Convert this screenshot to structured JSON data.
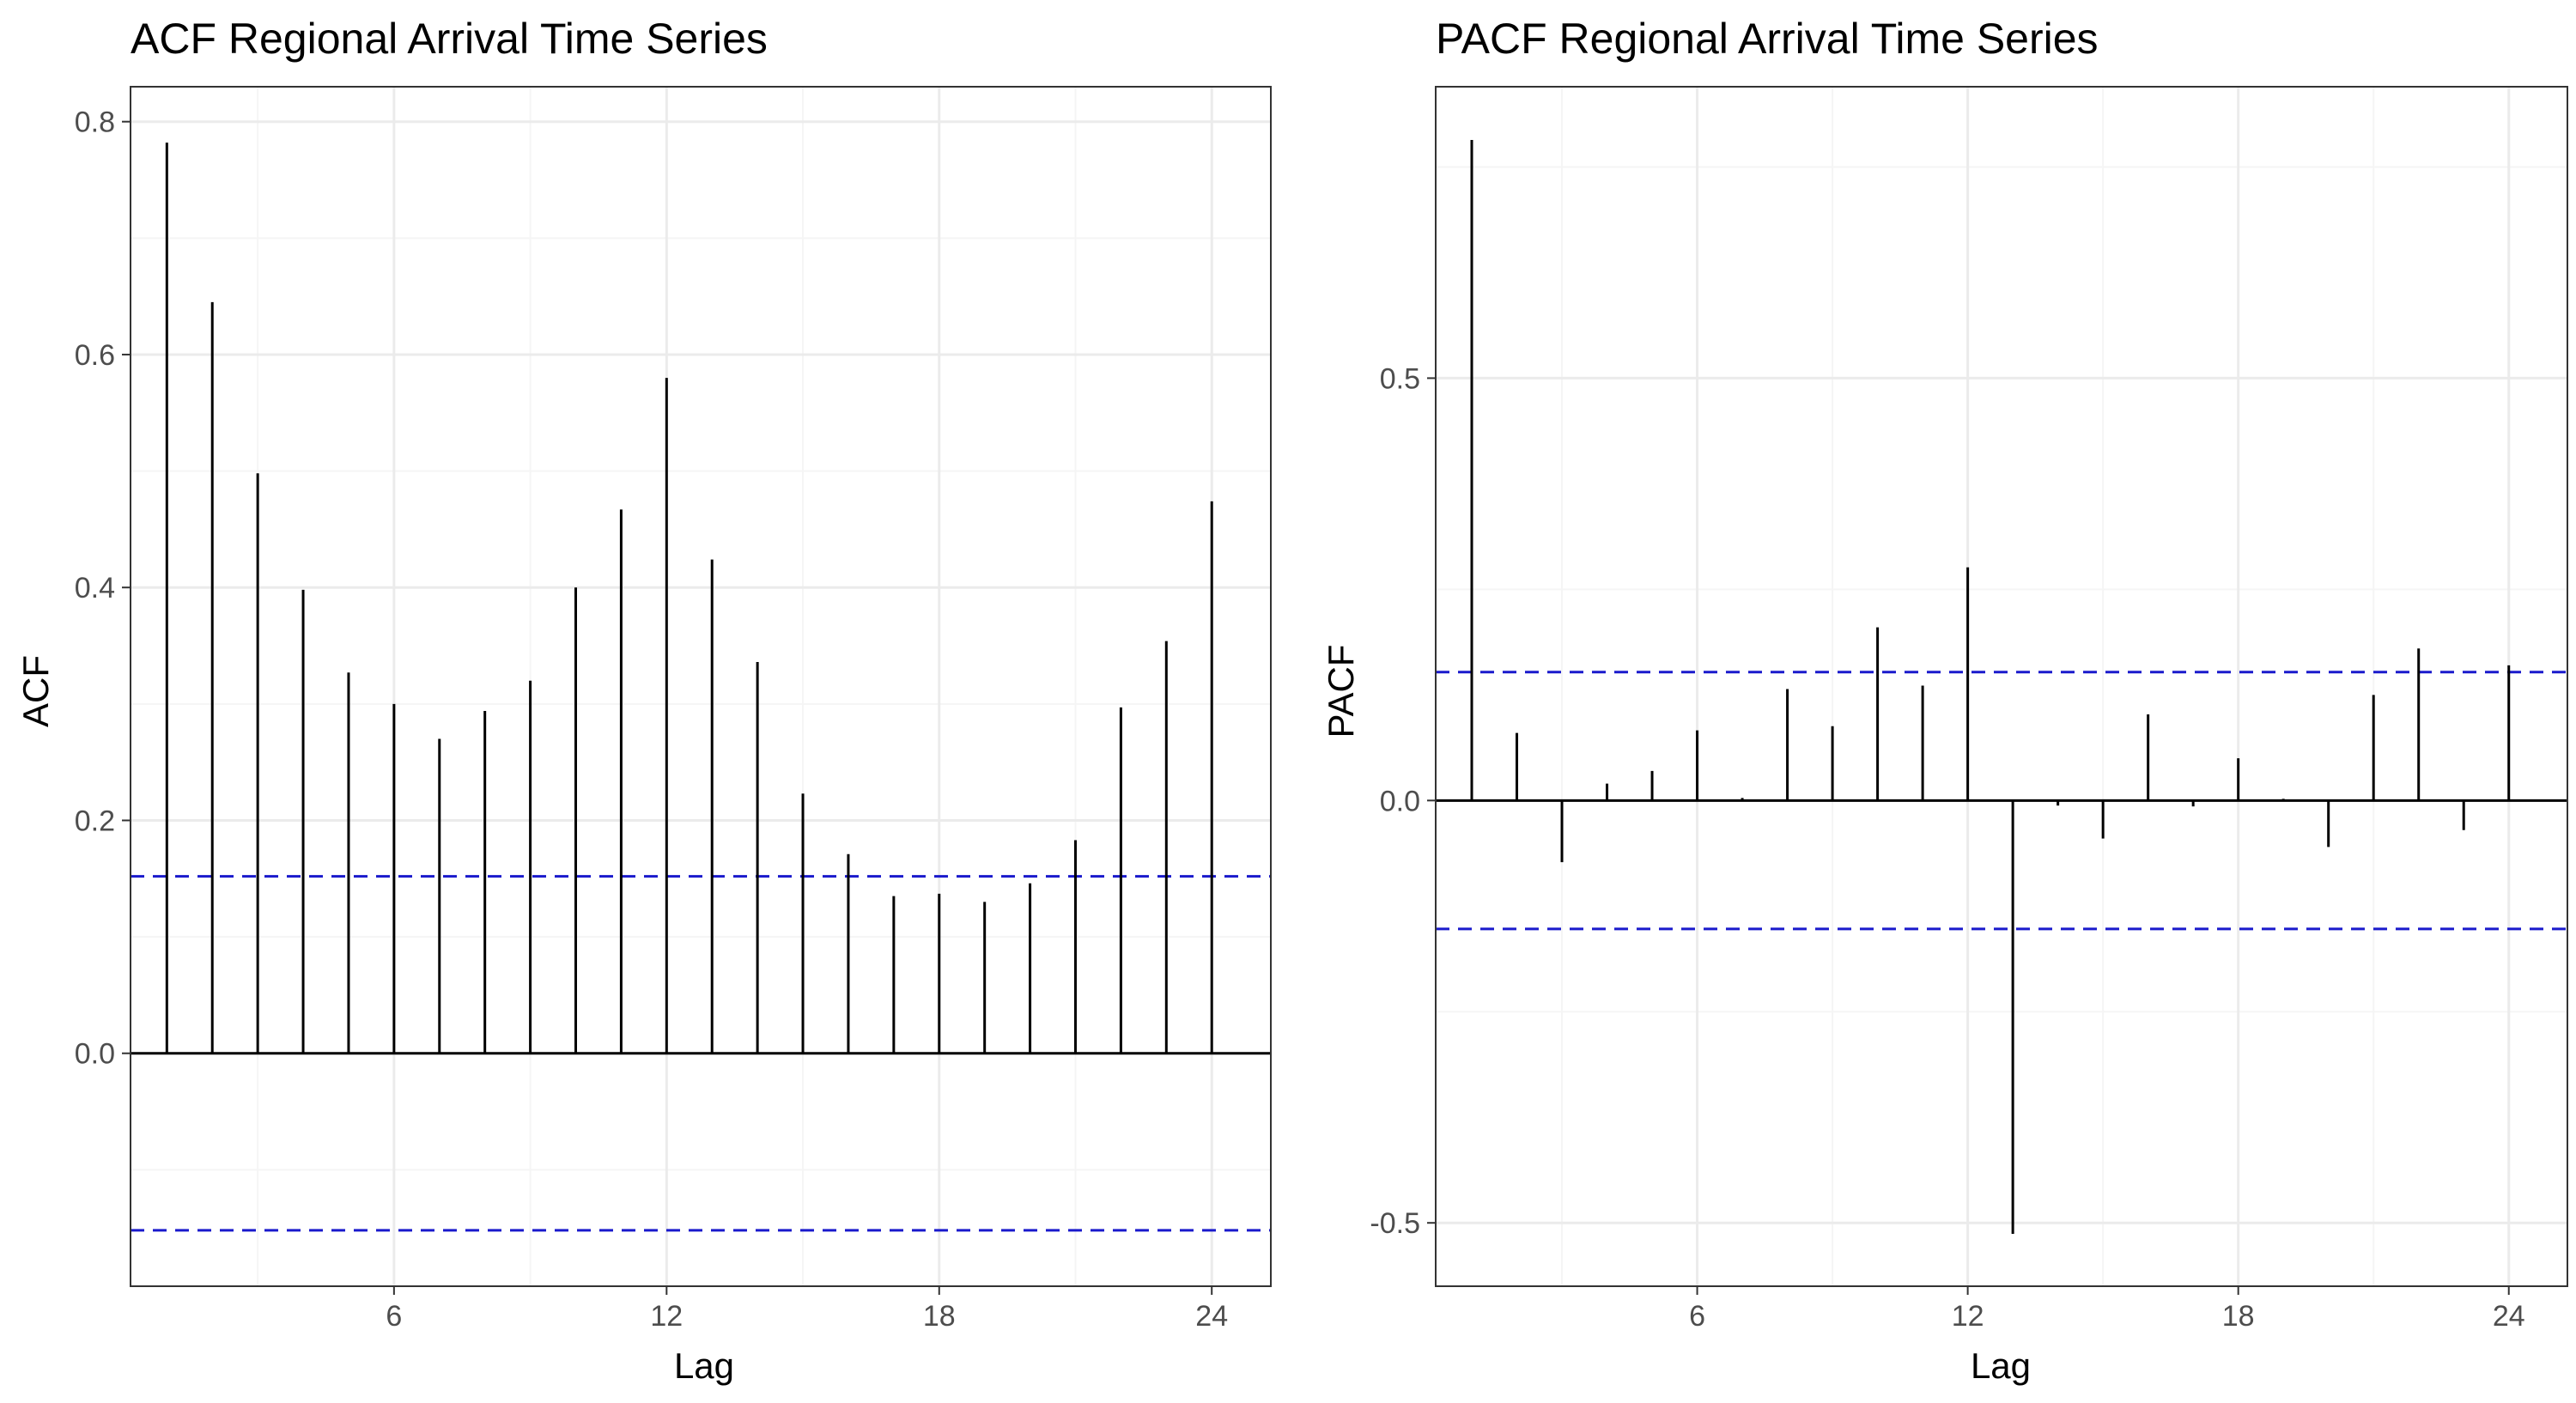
{
  "chart_data": [
    {
      "type": "bar",
      "title": "ACF Regional Arrival Time Series",
      "xlabel": "Lag",
      "ylabel": "ACF",
      "xlim": [
        0.2,
        25.3
      ],
      "ylim": [
        -0.2,
        0.83
      ],
      "x_ticks": [
        6,
        12,
        18,
        24
      ],
      "y_ticks": [
        0.0,
        0.2,
        0.4,
        0.6,
        0.8
      ],
      "y_tick_labels": [
        "0.0",
        "0.2",
        "0.4",
        "0.6",
        "0.8"
      ],
      "confidence_bound": 0.152,
      "grid": true,
      "x": [
        1,
        2,
        3,
        4,
        5,
        6,
        7,
        8,
        9,
        10,
        11,
        12,
        13,
        14,
        15,
        16,
        17,
        18,
        19,
        20,
        21,
        22,
        23,
        24
      ],
      "values": [
        0.782,
        0.645,
        0.498,
        0.398,
        0.327,
        0.3,
        0.27,
        0.294,
        0.32,
        0.4,
        0.467,
        0.58,
        0.424,
        0.336,
        0.223,
        0.171,
        0.135,
        0.137,
        0.13,
        0.146,
        0.183,
        0.297,
        0.354,
        0.474
      ]
    },
    {
      "type": "bar",
      "title": "PACF Regional Arrival Time Series",
      "xlabel": "Lag",
      "ylabel": "PACF",
      "xlim": [
        0.2,
        25.3
      ],
      "ylim": [
        -0.575,
        0.845
      ],
      "x_ticks": [
        6,
        12,
        18,
        24
      ],
      "y_ticks": [
        -0.5,
        0.0,
        0.5
      ],
      "y_tick_labels": [
        "-0.5",
        "0.0",
        "0.5"
      ],
      "confidence_bound": 0.152,
      "grid": true,
      "x": [
        1,
        2,
        3,
        4,
        5,
        6,
        7,
        8,
        9,
        10,
        11,
        12,
        13,
        14,
        15,
        16,
        17,
        18,
        19,
        20,
        21,
        22,
        23,
        24
      ],
      "values": [
        0.782,
        0.08,
        -0.073,
        0.02,
        0.035,
        0.083,
        0.003,
        0.132,
        0.088,
        0.205,
        0.136,
        0.276,
        -0.513,
        -0.006,
        -0.045,
        0.102,
        -0.007,
        0.05,
        0.002,
        -0.055,
        0.125,
        0.18,
        -0.035,
        0.16
      ]
    }
  ],
  "colors": {
    "bar": "#000000",
    "confidence_line": "#1a1acc",
    "grid_major": "#ebebeb",
    "grid_minor": "#f5f5f5",
    "panel_border": "#333333",
    "tick_label": "#4d4d4d"
  }
}
